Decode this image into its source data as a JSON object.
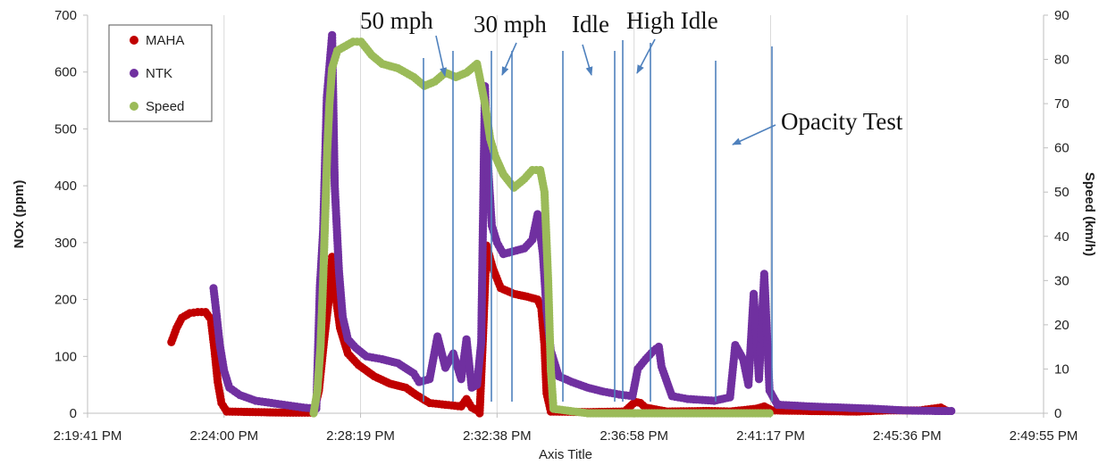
{
  "chart_data": {
    "type": "scatter",
    "xlabel": "Axis Title",
    "ylabel": "NOx (ppm)",
    "y2label": "Speed (km/h)",
    "x_ticks": [
      "2:19:41 PM",
      "2:24:00 PM",
      "2:28:19 PM",
      "2:32:38 PM",
      "2:36:58 PM",
      "2:41:17 PM",
      "2:45:36 PM",
      "2:49:55 PM"
    ],
    "ylim": [
      0,
      700
    ],
    "y_ticks": [
      0,
      100,
      200,
      300,
      400,
      500,
      600,
      700
    ],
    "y2lim": [
      0,
      90
    ],
    "y2_ticks": [
      0,
      10,
      20,
      30,
      40,
      50,
      60,
      70,
      80,
      90
    ],
    "legend_position": "top-left",
    "series": [
      {
        "name": "MAHA",
        "color": "#C00000",
        "axis": "left",
        "points": [
          [
            "2:22:20 PM",
            125
          ],
          [
            "2:22:30 PM",
            150
          ],
          [
            "2:22:40 PM",
            168
          ],
          [
            "2:22:55 PM",
            176
          ],
          [
            "2:23:10 PM",
            178
          ],
          [
            "2:23:25 PM",
            178
          ],
          [
            "2:23:35 PM",
            165
          ],
          [
            "2:23:42 PM",
            110
          ],
          [
            "2:23:48 PM",
            55
          ],
          [
            "2:23:55 PM",
            18
          ],
          [
            "2:24:05 PM",
            3
          ],
          [
            "2:25:00 PM",
            2
          ],
          [
            "2:26:00 PM",
            1
          ],
          [
            "2:26:50 PM",
            1
          ],
          [
            "2:27:00 PM",
            40
          ],
          [
            "2:27:10 PM",
            130
          ],
          [
            "2:27:20 PM",
            210
          ],
          [
            "2:27:25 PM",
            275
          ],
          [
            "2:27:32 PM",
            205
          ],
          [
            "2:27:40 PM",
            150
          ],
          [
            "2:27:55 PM",
            105
          ],
          [
            "2:28:15 PM",
            85
          ],
          [
            "2:28:45 PM",
            65
          ],
          [
            "2:29:15 PM",
            52
          ],
          [
            "2:29:45 PM",
            45
          ],
          [
            "2:30:05 PM",
            32
          ],
          [
            "2:30:30 PM",
            18
          ],
          [
            "2:31:00 PM",
            15
          ],
          [
            "2:31:30 PM",
            12
          ],
          [
            "2:31:40 PM",
            25
          ],
          [
            "2:31:50 PM",
            10
          ],
          [
            "2:32:00 PM",
            5
          ],
          [
            "2:32:05 PM",
            0
          ],
          [
            "2:32:12 PM",
            150
          ],
          [
            "2:32:18 PM",
            295
          ],
          [
            "2:32:30 PM",
            255
          ],
          [
            "2:32:45 PM",
            220
          ],
          [
            "2:33:10 PM",
            210
          ],
          [
            "2:33:35 PM",
            205
          ],
          [
            "2:33:55 PM",
            200
          ],
          [
            "2:34:02 PM",
            185
          ],
          [
            "2:34:08 PM",
            120
          ],
          [
            "2:34:12 PM",
            35
          ],
          [
            "2:34:20 PM",
            3
          ],
          [
            "2:35:30 PM",
            2
          ],
          [
            "2:36:40 PM",
            3
          ],
          [
            "2:37:00 PM",
            20
          ],
          [
            "2:37:10 PM",
            18
          ],
          [
            "2:37:20 PM",
            10
          ],
          [
            "2:38:00 PM",
            3
          ],
          [
            "2:39:20 PM",
            4
          ],
          [
            "2:40:00 PM",
            3
          ],
          [
            "2:40:50 PM",
            8
          ],
          [
            "2:41:05 PM",
            12
          ],
          [
            "2:41:20 PM",
            5
          ],
          [
            "2:42:30 PM",
            4
          ],
          [
            "2:44:00 PM",
            3
          ],
          [
            "2:45:00 PM",
            5
          ],
          [
            "2:46:00 PM",
            5
          ],
          [
            "2:46:40 PM",
            10
          ],
          [
            "2:46:50 PM",
            5
          ]
        ]
      },
      {
        "name": "NTK",
        "color": "#7030A0",
        "axis": "left",
        "points": [
          [
            "2:23:40 PM",
            220
          ],
          [
            "2:23:45 PM",
            180
          ],
          [
            "2:23:52 PM",
            120
          ],
          [
            "2:24:00 PM",
            75
          ],
          [
            "2:24:10 PM",
            45
          ],
          [
            "2:24:30 PM",
            32
          ],
          [
            "2:25:00 PM",
            22
          ],
          [
            "2:25:30 PM",
            18
          ],
          [
            "2:26:00 PM",
            14
          ],
          [
            "2:26:30 PM",
            10
          ],
          [
            "2:26:55 PM",
            8
          ],
          [
            "2:27:02 PM",
            225
          ],
          [
            "2:27:08 PM",
            320
          ],
          [
            "2:27:15 PM",
            555
          ],
          [
            "2:27:20 PM",
            610
          ],
          [
            "2:27:25 PM",
            665
          ],
          [
            "2:27:30 PM",
            400
          ],
          [
            "2:27:38 PM",
            250
          ],
          [
            "2:27:45 PM",
            170
          ],
          [
            "2:27:55 PM",
            130
          ],
          [
            "2:28:10 PM",
            115
          ],
          [
            "2:28:30 PM",
            100
          ],
          [
            "2:29:00 PM",
            95
          ],
          [
            "2:29:30 PM",
            88
          ],
          [
            "2:30:00 PM",
            70
          ],
          [
            "2:30:10 PM",
            55
          ],
          [
            "2:30:30 PM",
            60
          ],
          [
            "2:30:45 PM",
            135
          ],
          [
            "2:31:00 PM",
            80
          ],
          [
            "2:31:15 PM",
            105
          ],
          [
            "2:31:30 PM",
            60
          ],
          [
            "2:31:40 PM",
            130
          ],
          [
            "2:31:50 PM",
            45
          ],
          [
            "2:32:00 PM",
            50
          ],
          [
            "2:32:08 PM",
            125
          ],
          [
            "2:32:15 PM",
            575
          ],
          [
            "2:32:20 PM",
            450
          ],
          [
            "2:32:28 PM",
            330
          ],
          [
            "2:32:38 PM",
            300
          ],
          [
            "2:32:50 PM",
            280
          ],
          [
            "2:33:10 PM",
            285
          ],
          [
            "2:33:30 PM",
            290
          ],
          [
            "2:33:45 PM",
            305
          ],
          [
            "2:33:55 PM",
            350
          ],
          [
            "2:34:05 PM",
            280
          ],
          [
            "2:34:12 PM",
            180
          ],
          [
            "2:34:20 PM",
            110
          ],
          [
            "2:34:35 PM",
            65
          ],
          [
            "2:35:00 PM",
            55
          ],
          [
            "2:35:30 PM",
            45
          ],
          [
            "2:36:00 PM",
            38
          ],
          [
            "2:36:30 PM",
            33
          ],
          [
            "2:36:55 PM",
            30
          ],
          [
            "2:37:05 PM",
            78
          ],
          [
            "2:37:20 PM",
            95
          ],
          [
            "2:37:35 PM",
            110
          ],
          [
            "2:37:45 PM",
            117
          ],
          [
            "2:37:50 PM",
            82
          ],
          [
            "2:38:10 PM",
            30
          ],
          [
            "2:38:40 PM",
            25
          ],
          [
            "2:39:30 PM",
            22
          ],
          [
            "2:40:00 PM",
            28
          ],
          [
            "2:40:10 PM",
            120
          ],
          [
            "2:40:25 PM",
            95
          ],
          [
            "2:40:35 PM",
            50
          ],
          [
            "2:40:45 PM",
            210
          ],
          [
            "2:40:55 PM",
            60
          ],
          [
            "2:41:05 PM",
            245
          ],
          [
            "2:41:15 PM",
            40
          ],
          [
            "2:41:30 PM",
            15
          ],
          [
            "2:42:30 PM",
            12
          ],
          [
            "2:43:30 PM",
            10
          ],
          [
            "2:44:30 PM",
            8
          ],
          [
            "2:45:30 PM",
            5
          ],
          [
            "2:46:30 PM",
            4
          ],
          [
            "2:47:00 PM",
            4
          ]
        ]
      },
      {
        "name": "Speed",
        "color": "#9BBB59",
        "axis": "right",
        "points": [
          [
            "2:26:50 PM",
            0
          ],
          [
            "2:26:57 PM",
            5
          ],
          [
            "2:27:03 PM",
            15
          ],
          [
            "2:27:08 PM",
            30
          ],
          [
            "2:27:12 PM",
            45
          ],
          [
            "2:27:16 PM",
            60
          ],
          [
            "2:27:20 PM",
            70
          ],
          [
            "2:27:25 PM",
            78
          ],
          [
            "2:27:35 PM",
            82
          ],
          [
            "2:27:50 PM",
            83
          ],
          [
            "2:28:05 PM",
            84
          ],
          [
            "2:28:20 PM",
            84
          ],
          [
            "2:28:40 PM",
            81
          ],
          [
            "2:29:00 PM",
            79
          ],
          [
            "2:29:30 PM",
            78
          ],
          [
            "2:30:00 PM",
            76
          ],
          [
            "2:30:20 PM",
            74
          ],
          [
            "2:30:40 PM",
            75
          ],
          [
            "2:31:00 PM",
            77
          ],
          [
            "2:31:20 PM",
            76
          ],
          [
            "2:31:40 PM",
            77
          ],
          [
            "2:32:00 PM",
            79
          ],
          [
            "2:32:15 PM",
            70
          ],
          [
            "2:32:25 PM",
            62
          ],
          [
            "2:32:35 PM",
            58
          ],
          [
            "2:32:50 PM",
            54
          ],
          [
            "2:33:10 PM",
            51
          ],
          [
            "2:33:30 PM",
            53
          ],
          [
            "2:33:45 PM",
            55
          ],
          [
            "2:34:00 PM",
            55
          ],
          [
            "2:34:08 PM",
            50
          ],
          [
            "2:34:15 PM",
            30
          ],
          [
            "2:34:20 PM",
            10
          ],
          [
            "2:34:25 PM",
            1
          ],
          [
            "2:35:30 PM",
            0
          ],
          [
            "2:37:00 PM",
            0
          ],
          [
            "2:38:30 PM",
            0
          ],
          [
            "2:40:00 PM",
            0
          ],
          [
            "2:41:15 PM",
            0
          ]
        ]
      }
    ],
    "annotations": [
      {
        "text": "50 mph"
      },
      {
        "text": "30 mph"
      },
      {
        "text": "Idle"
      },
      {
        "text": "High Idle"
      },
      {
        "text": "Opacity Test"
      }
    ]
  }
}
